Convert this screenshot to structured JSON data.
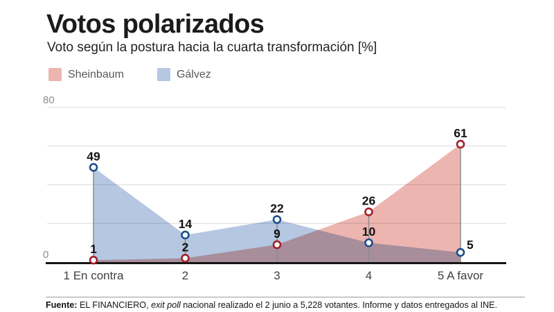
{
  "header": {
    "title": "Votos polarizados",
    "subtitle": "Voto según la postura hacia la cuarta transformación [%]"
  },
  "legend": {
    "items": [
      {
        "label": "Sheinbaum",
        "color": "#edb5b0"
      },
      {
        "label": "Gálvez",
        "color": "#b5c7e1"
      }
    ]
  },
  "footer": {
    "source_label": "Fuente:",
    "source_pre_italic": " EL FINANCIERO, ",
    "source_italic": "exit poll",
    "source_post_italic": " nacional realizado el 2 junio a 5,228 votantes. Informe y datos entregados al INE."
  },
  "chart_data": {
    "type": "area",
    "title": "Votos polarizados",
    "subtitle": "Voto según la postura hacia la cuarta transformación [%]",
    "categories": [
      "1 En contra",
      "2",
      "3",
      "4",
      "5 A favor"
    ],
    "series": [
      {
        "name": "Sheinbaum",
        "values": [
          1,
          2,
          9,
          26,
          61
        ],
        "fill": "#edb5b0",
        "marker_stroke": "#a02026"
      },
      {
        "name": "Gálvez",
        "values": [
          49,
          14,
          22,
          10,
          5
        ],
        "fill": "#b5c7e1",
        "marker_stroke": "#1b4e8c"
      }
    ],
    "xlabel": "",
    "ylabel": "",
    "ylim": [
      0,
      80
    ],
    "yticks_labeled": [
      0,
      80
    ],
    "gridlines": [
      20,
      40,
      60,
      80
    ],
    "grid": true,
    "legend_position": "top-left",
    "marker_fill": "#ffffff",
    "value_label_color": "#121212",
    "dropline_color": "#8c8c8c"
  }
}
